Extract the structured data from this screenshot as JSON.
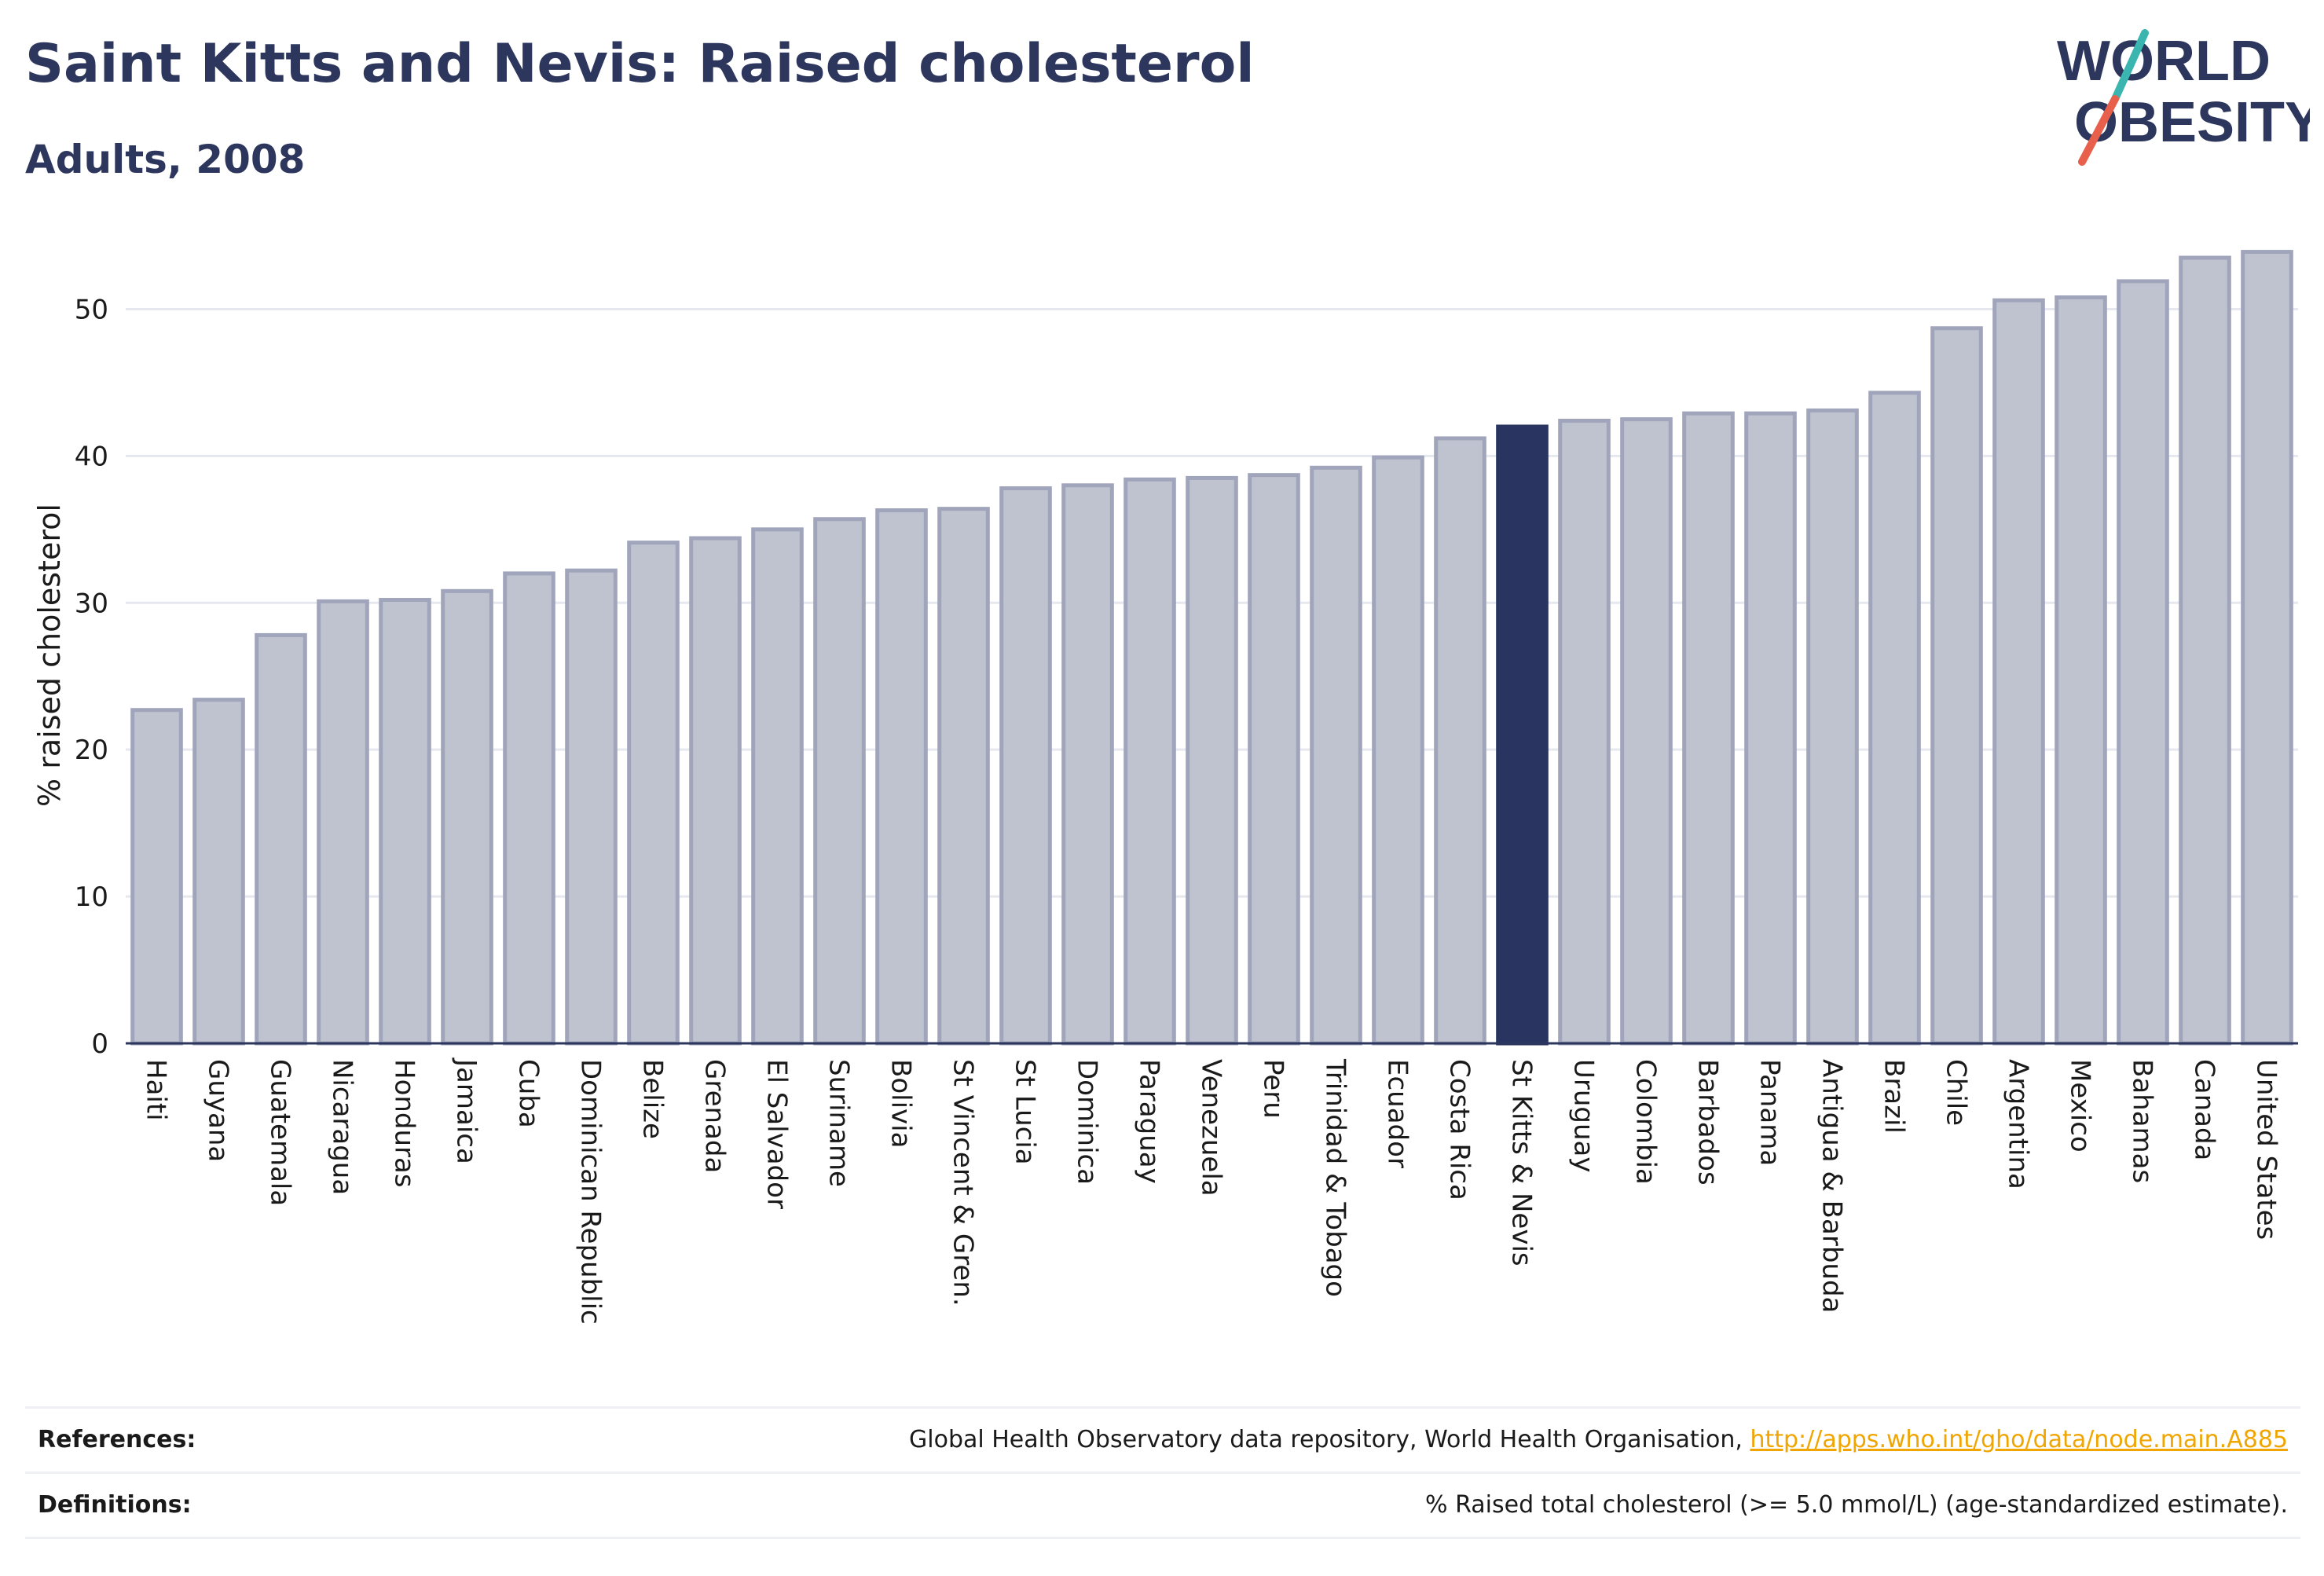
{
  "header": {
    "title": "Saint Kitts and Nevis: Raised cholesterol",
    "subtitle": "Adults, 2008"
  },
  "logo": {
    "line1": "WORLD",
    "line2": "OBESITY",
    "text_color": "#2d365c",
    "slash_colors": [
      "#3ab5b0",
      "#e8604c"
    ]
  },
  "colors": {
    "bar_default": "#bfc2cf",
    "bar_default_stroke": "#a0a5bb",
    "bar_highlight": "#2a3461",
    "text": "#2d365c",
    "link": "#f0a500"
  },
  "chart_data": {
    "type": "bar",
    "ylabel": "% raised cholesterol",
    "ylim": [
      0,
      55
    ],
    "yticks": [
      0,
      10,
      20,
      30,
      40,
      50
    ],
    "grid": true,
    "highlight": "St Kitts & Nevis",
    "categories": [
      "Haiti",
      "Guyana",
      "Guatemala",
      "Nicaragua",
      "Honduras",
      "Jamaica",
      "Cuba",
      "Dominican Republic",
      "Belize",
      "Grenada",
      "El Salvador",
      "Suriname",
      "Bolivia",
      "St Vincent & Gren.",
      "St Lucia",
      "Dominica",
      "Paraguay",
      "Venezuela",
      "Peru",
      "Trinidad & Tobago",
      "Ecuador",
      "Costa Rica",
      "St Kitts & Nevis",
      "Uruguay",
      "Colombia",
      "Barbados",
      "Panama",
      "Antigua & Barbuda",
      "Brazil",
      "Chile",
      "Argentina",
      "Mexico",
      "Bahamas",
      "Canada",
      "United States"
    ],
    "values": [
      22.7,
      23.4,
      27.8,
      30.1,
      30.2,
      30.8,
      32.0,
      32.2,
      34.1,
      34.4,
      35.0,
      35.7,
      36.3,
      36.4,
      37.8,
      38.0,
      38.4,
      38.5,
      38.7,
      39.2,
      39.9,
      41.2,
      42.0,
      42.4,
      42.5,
      42.9,
      42.9,
      43.1,
      44.3,
      48.7,
      50.6,
      50.8,
      51.9,
      53.5,
      53.9
    ]
  },
  "footer": {
    "references_label": "References:",
    "references_text": "Global Health Observatory data repository, World Health Organisation, ",
    "references_link": "http://apps.who.int/gho/data/node.main.A885",
    "definitions_label": "Definitions:",
    "definitions_text": "% Raised total cholesterol (>= 5.0 mmol/L) (age-standardized estimate)."
  }
}
